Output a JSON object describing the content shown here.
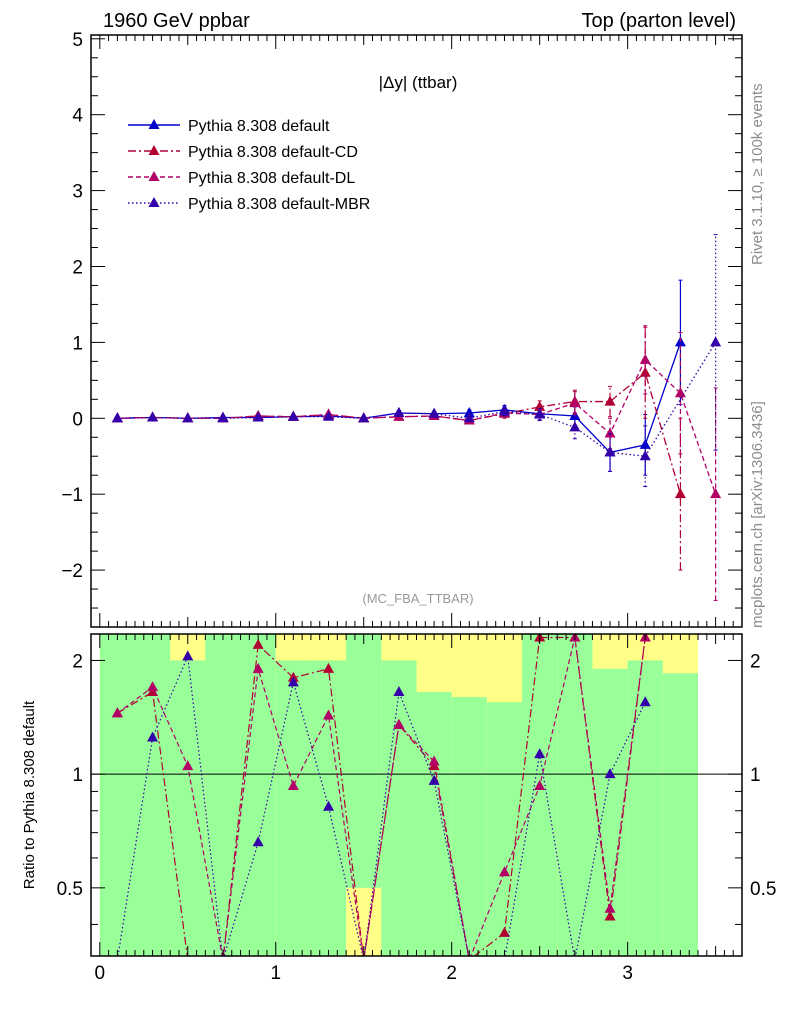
{
  "header": {
    "left": "1960 GeV ppbar",
    "right": "Top (parton level)"
  },
  "plot_title": "|Δy| (ttbar)",
  "analysis_tag": "(MC_FBA_TTBAR)",
  "side_text": {
    "rivet": "Rivet 3.1.10, ≥ 100k events",
    "source": "mcplots.cern.ch [arXiv:1306.3436]"
  },
  "chart_data": [
    {
      "type": "line",
      "panel": "main",
      "xlim": [
        -0.05,
        3.65
      ],
      "ylim": [
        -2.75,
        5.05
      ],
      "yticks": [
        -2,
        -1,
        0,
        1,
        2,
        3,
        4,
        5
      ],
      "yticklabels": [
        "−2",
        "−1",
        "0",
        "1",
        "2",
        "3",
        "4",
        "5"
      ],
      "legend_position": "top-left",
      "x": [
        0.1,
        0.3,
        0.5,
        0.7,
        0.9,
        1.1,
        1.3,
        1.5,
        1.7,
        1.9,
        2.1,
        2.3,
        2.5,
        2.7,
        2.9,
        3.1,
        3.3,
        3.5
      ],
      "series": [
        {
          "name": "Pythia 8.308 default",
          "color": "#0000cc",
          "dash": "solid",
          "values": [
            0.0,
            0.01,
            0.0,
            0.01,
            0.01,
            0.02,
            0.03,
            0.0,
            0.07,
            0.06,
            0.07,
            0.11,
            0.06,
            0.03,
            -0.45,
            -0.35,
            1.0,
            null
          ],
          "errors": [
            0.01,
            0.01,
            0.01,
            0.01,
            0.01,
            0.01,
            0.02,
            0.02,
            0.03,
            0.03,
            0.04,
            0.06,
            0.08,
            0.12,
            0.25,
            0.4,
            0.82,
            null
          ]
        },
        {
          "name": "Pythia 8.308 default-CD",
          "color": "#b20033",
          "dash": "dashdot",
          "values": [
            0.0,
            0.01,
            0.0,
            0.0,
            0.03,
            0.02,
            0.05,
            0.0,
            0.02,
            0.03,
            -0.03,
            0.06,
            0.15,
            0.22,
            0.22,
            0.6,
            -1.0,
            null
          ],
          "errors": [
            0.01,
            0.01,
            0.01,
            0.01,
            0.01,
            0.01,
            0.02,
            0.02,
            0.03,
            0.03,
            0.04,
            0.06,
            0.08,
            0.15,
            0.2,
            0.6,
            1.0,
            null
          ]
        },
        {
          "name": "Pythia 8.308 default-DL",
          "color": "#b20066",
          "dash": "dashed",
          "values": [
            0.0,
            0.01,
            0.0,
            0.0,
            0.03,
            0.02,
            0.05,
            0.0,
            0.02,
            0.03,
            -0.03,
            0.07,
            0.05,
            0.2,
            -0.2,
            0.77,
            0.33,
            -1.0
          ],
          "errors": [
            0.01,
            0.01,
            0.01,
            0.01,
            0.01,
            0.01,
            0.02,
            0.02,
            0.03,
            0.03,
            0.04,
            0.05,
            0.08,
            0.15,
            0.2,
            0.45,
            0.8,
            1.4
          ]
        },
        {
          "name": "Pythia 8.308 default-MBR",
          "color": "#3300aa",
          "dash": "dotted",
          "values": [
            0.0,
            0.01,
            0.0,
            0.0,
            0.01,
            0.02,
            0.02,
            0.0,
            0.07,
            0.06,
            0.0,
            0.09,
            0.05,
            -0.12,
            -0.45,
            -0.5,
            null,
            1.0
          ],
          "errors": [
            0.01,
            0.01,
            0.01,
            0.01,
            0.01,
            0.01,
            0.02,
            0.02,
            0.03,
            0.03,
            0.04,
            0.06,
            0.08,
            0.15,
            0.25,
            0.4,
            null,
            1.42
          ]
        }
      ]
    },
    {
      "type": "line",
      "panel": "ratio",
      "ylabel": "Ratio to Pythia 8.308 default",
      "xlim": [
        -0.05,
        3.65
      ],
      "ylim": [
        0.33,
        2.35
      ],
      "yticks": [
        0.5,
        1,
        2
      ],
      "yticklabels": [
        "0.5",
        "1",
        "2"
      ],
      "xticks": [
        0,
        1,
        2,
        3
      ],
      "xticklabels": [
        "0",
        "1",
        "2",
        "3"
      ],
      "reference_line": 1,
      "bands": {
        "x_edges": [
          0.0,
          0.2,
          0.4,
          0.6,
          0.8,
          1.0,
          1.2,
          1.4,
          1.6,
          1.8,
          2.0,
          2.2,
          2.4,
          2.6,
          2.8,
          3.0,
          3.2,
          3.4
        ],
        "colors": {
          "inner": "#99ff99",
          "outer": "#ffff88"
        },
        "inner_low": [
          0.0,
          0.0,
          0.0,
          0.0,
          0.0,
          0.0,
          0.0,
          0.5,
          0.0,
          0.0,
          0.0,
          0.0,
          0.0,
          0.0,
          0.0,
          0.0,
          0.0
        ],
        "inner_high": [
          2.35,
          2.35,
          2.0,
          2.35,
          2.35,
          2.0,
          2.0,
          2.35,
          2.0,
          1.65,
          1.6,
          1.55,
          2.35,
          2.35,
          1.9,
          2.0,
          1.85
        ],
        "outer_low": [
          0.0,
          0.0,
          0.0,
          0.0,
          0.0,
          0.0,
          0.0,
          0.0,
          0.0,
          0.0,
          0.0,
          0.0,
          0.0,
          0.0,
          0.0,
          0.0,
          0.0
        ],
        "outer_high": [
          2.35,
          2.35,
          2.35,
          2.35,
          2.35,
          2.35,
          2.35,
          2.35,
          2.35,
          2.35,
          2.35,
          2.35,
          2.35,
          2.35,
          2.35,
          2.35,
          2.35
        ]
      },
      "series": [
        {
          "name": "Pythia 8.308 default-CD",
          "color": "#b20033",
          "dash": "dashdot",
          "values": [
            1.45,
            1.65,
            0.0,
            0.0,
            2.2,
            1.8,
            1.9,
            0.0,
            1.35,
            1.05,
            0.0,
            0.38,
            2.3,
            2.3,
            0.42,
            2.3,
            null
          ]
        },
        {
          "name": "Pythia 8.308 default-DL",
          "color": "#b20066",
          "dash": "dashed",
          "values": [
            1.45,
            1.7,
            1.05,
            0.0,
            1.9,
            0.93,
            1.43,
            0.0,
            1.35,
            1.08,
            0.0,
            0.55,
            0.93,
            2.3,
            0.44,
            2.3,
            null
          ]
        },
        {
          "name": "Pythia 8.308 default-MBR",
          "color": "#3300aa",
          "dash": "dotted",
          "values": [
            0.0,
            1.25,
            2.05,
            0.0,
            0.66,
            1.75,
            0.82,
            0.0,
            1.65,
            0.96,
            0.0,
            0.0,
            1.13,
            0.0,
            1.0,
            1.55,
            null
          ]
        }
      ]
    }
  ]
}
